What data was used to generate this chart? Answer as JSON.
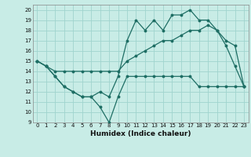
{
  "xlabel": "Humidex (Indice chaleur)",
  "bg_color": "#c8ece6",
  "grid_color": "#a0d4ce",
  "line_color": "#1e6e64",
  "xlim": [
    -0.5,
    23.5
  ],
  "ylim": [
    9,
    20.5
  ],
  "yticks": [
    9,
    10,
    11,
    12,
    13,
    14,
    15,
    16,
    17,
    18,
    19,
    20
  ],
  "xticks": [
    0,
    1,
    2,
    3,
    4,
    5,
    6,
    7,
    8,
    9,
    10,
    11,
    12,
    13,
    14,
    15,
    16,
    17,
    18,
    19,
    20,
    21,
    22,
    23
  ],
  "line1_x": [
    0,
    1,
    2,
    3,
    4,
    5,
    6,
    7,
    8,
    9,
    10,
    11,
    12,
    13,
    14,
    15,
    16,
    17,
    18,
    19,
    20,
    21,
    22,
    23
  ],
  "line1_y": [
    15,
    14.5,
    13.5,
    12.5,
    12,
    11.5,
    11.5,
    10.5,
    9,
    11.5,
    13.5,
    13.5,
    13.5,
    13.5,
    13.5,
    13.5,
    13.5,
    13.5,
    12.5,
    12.5,
    12.5,
    12.5,
    12.5,
    12.5
  ],
  "line2_x": [
    0,
    1,
    2,
    3,
    4,
    5,
    6,
    7,
    8,
    9,
    10,
    11,
    12,
    13,
    14,
    15,
    16,
    17,
    18,
    19,
    20,
    21,
    22,
    23
  ],
  "line2_y": [
    15,
    14.5,
    14,
    14,
    14,
    14,
    14,
    14,
    14,
    14,
    15,
    15.5,
    16,
    16.5,
    17,
    17,
    17.5,
    18,
    18,
    18.5,
    18,
    17,
    16.5,
    12.5
  ],
  "line3_x": [
    0,
    1,
    2,
    3,
    4,
    5,
    6,
    7,
    8,
    9,
    10,
    11,
    12,
    13,
    14,
    15,
    16,
    17,
    18,
    19,
    20,
    21,
    22,
    23
  ],
  "line3_y": [
    15,
    14.5,
    13.5,
    12.5,
    12,
    11.5,
    11.5,
    12,
    11.5,
    13.5,
    17,
    19,
    18,
    19,
    18,
    19.5,
    19.5,
    20,
    19,
    19,
    18,
    16.5,
    14.5,
    12.5
  ]
}
